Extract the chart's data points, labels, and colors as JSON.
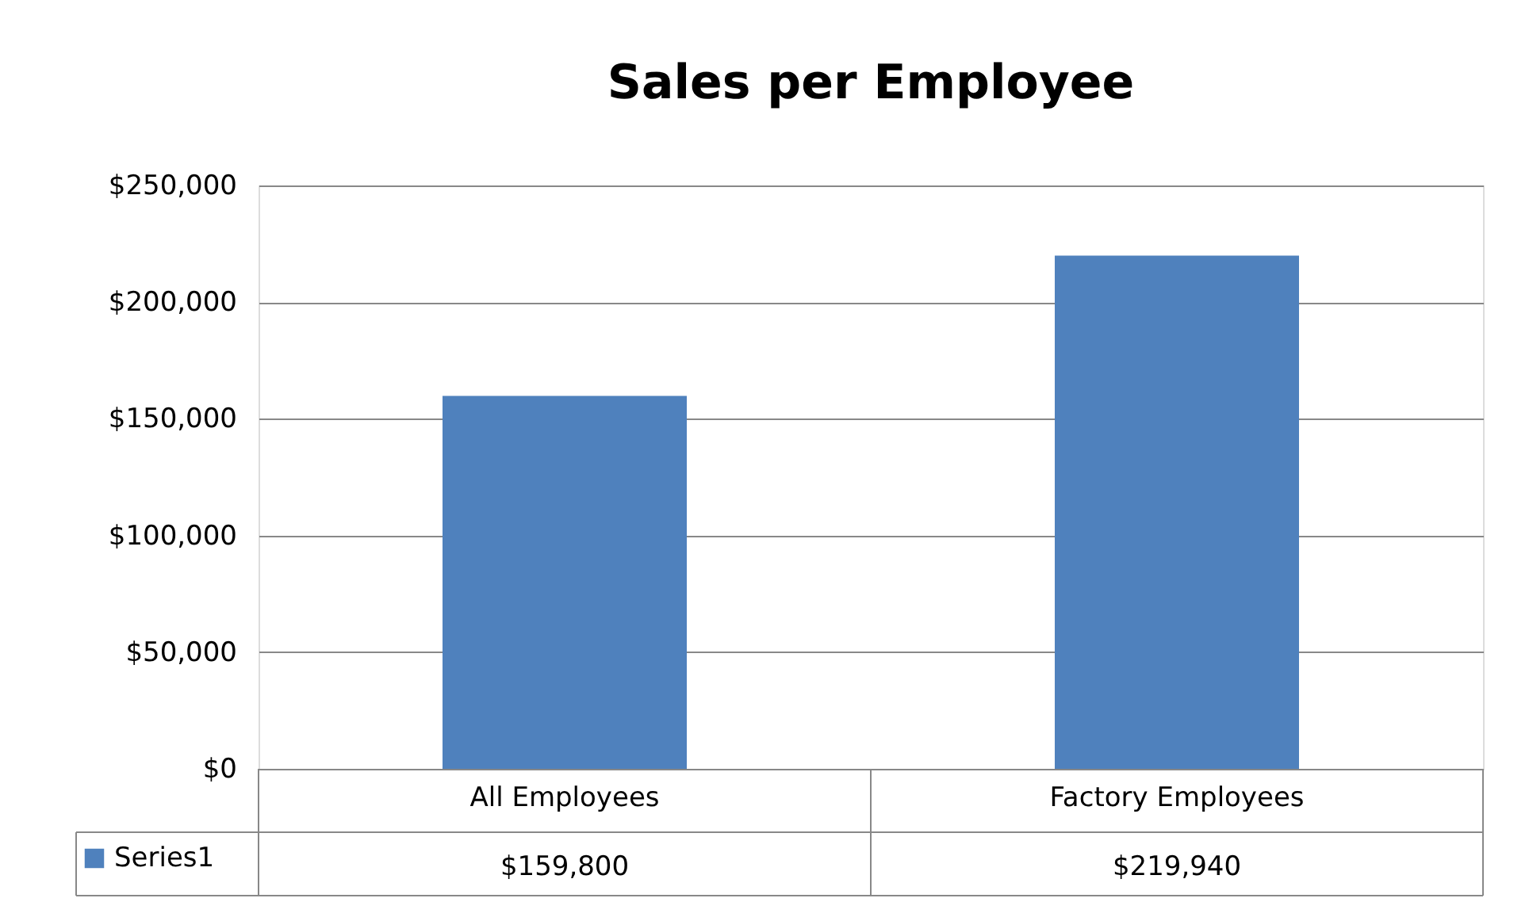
{
  "chart_data": {
    "type": "bar",
    "title": "Sales per Employee",
    "categories": [
      "All Employees",
      "Factory Employees"
    ],
    "series": [
      {
        "name": "Series1",
        "color": "#4f81bd",
        "values": [
          159800,
          219940
        ],
        "value_labels": [
          "$159,800",
          "$219,940"
        ]
      }
    ],
    "ylim": [
      0,
      250000
    ],
    "yticks": [
      {
        "value": 0,
        "label": "$0"
      },
      {
        "value": 50000,
        "label": "$50,000"
      },
      {
        "value": 100000,
        "label": "$100,000"
      },
      {
        "value": 150000,
        "label": "$150,000"
      },
      {
        "value": 200000,
        "label": "$200,000"
      },
      {
        "value": 250000,
        "label": "$250,000"
      }
    ],
    "grid": "y",
    "legend": "bottom left"
  }
}
